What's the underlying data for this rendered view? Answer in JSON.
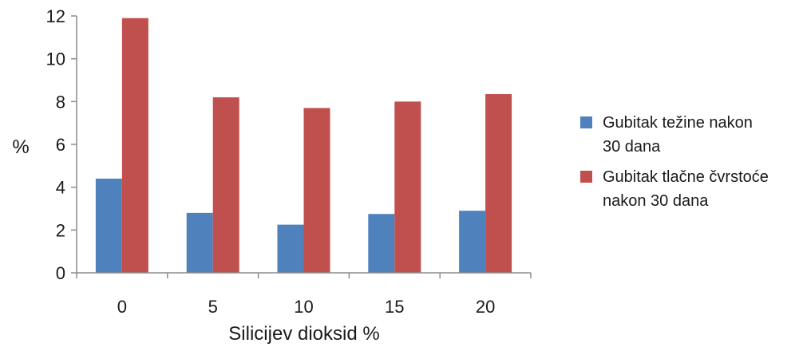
{
  "chart_data": {
    "type": "bar",
    "categories": [
      "0",
      "5",
      "10",
      "15",
      "20"
    ],
    "series": [
      {
        "name": "Gubitak težine nakon 30 dana",
        "values": [
          4.4,
          2.8,
          2.25,
          2.75,
          2.9
        ],
        "color": "#4f81bd"
      },
      {
        "name": "Gubitak tlačne čvrstoće nakon 30 dana",
        "values": [
          11.9,
          8.2,
          7.7,
          8.0,
          8.35
        ],
        "color": "#c0504d"
      }
    ],
    "yticks": [
      "0",
      "2",
      "4",
      "6",
      "8",
      "10",
      "12"
    ],
    "ylim": [
      0,
      12
    ],
    "xlabel": "Silicijev dioksid %",
    "ylabel": "%",
    "grid": false,
    "legend_position": "right",
    "legend": {
      "lines": [
        [
          "Gubitak težine nakon",
          "30 dana"
        ],
        [
          "Gubitak tlačne čvrstoće",
          "nakon 30 dana"
        ]
      ]
    }
  }
}
